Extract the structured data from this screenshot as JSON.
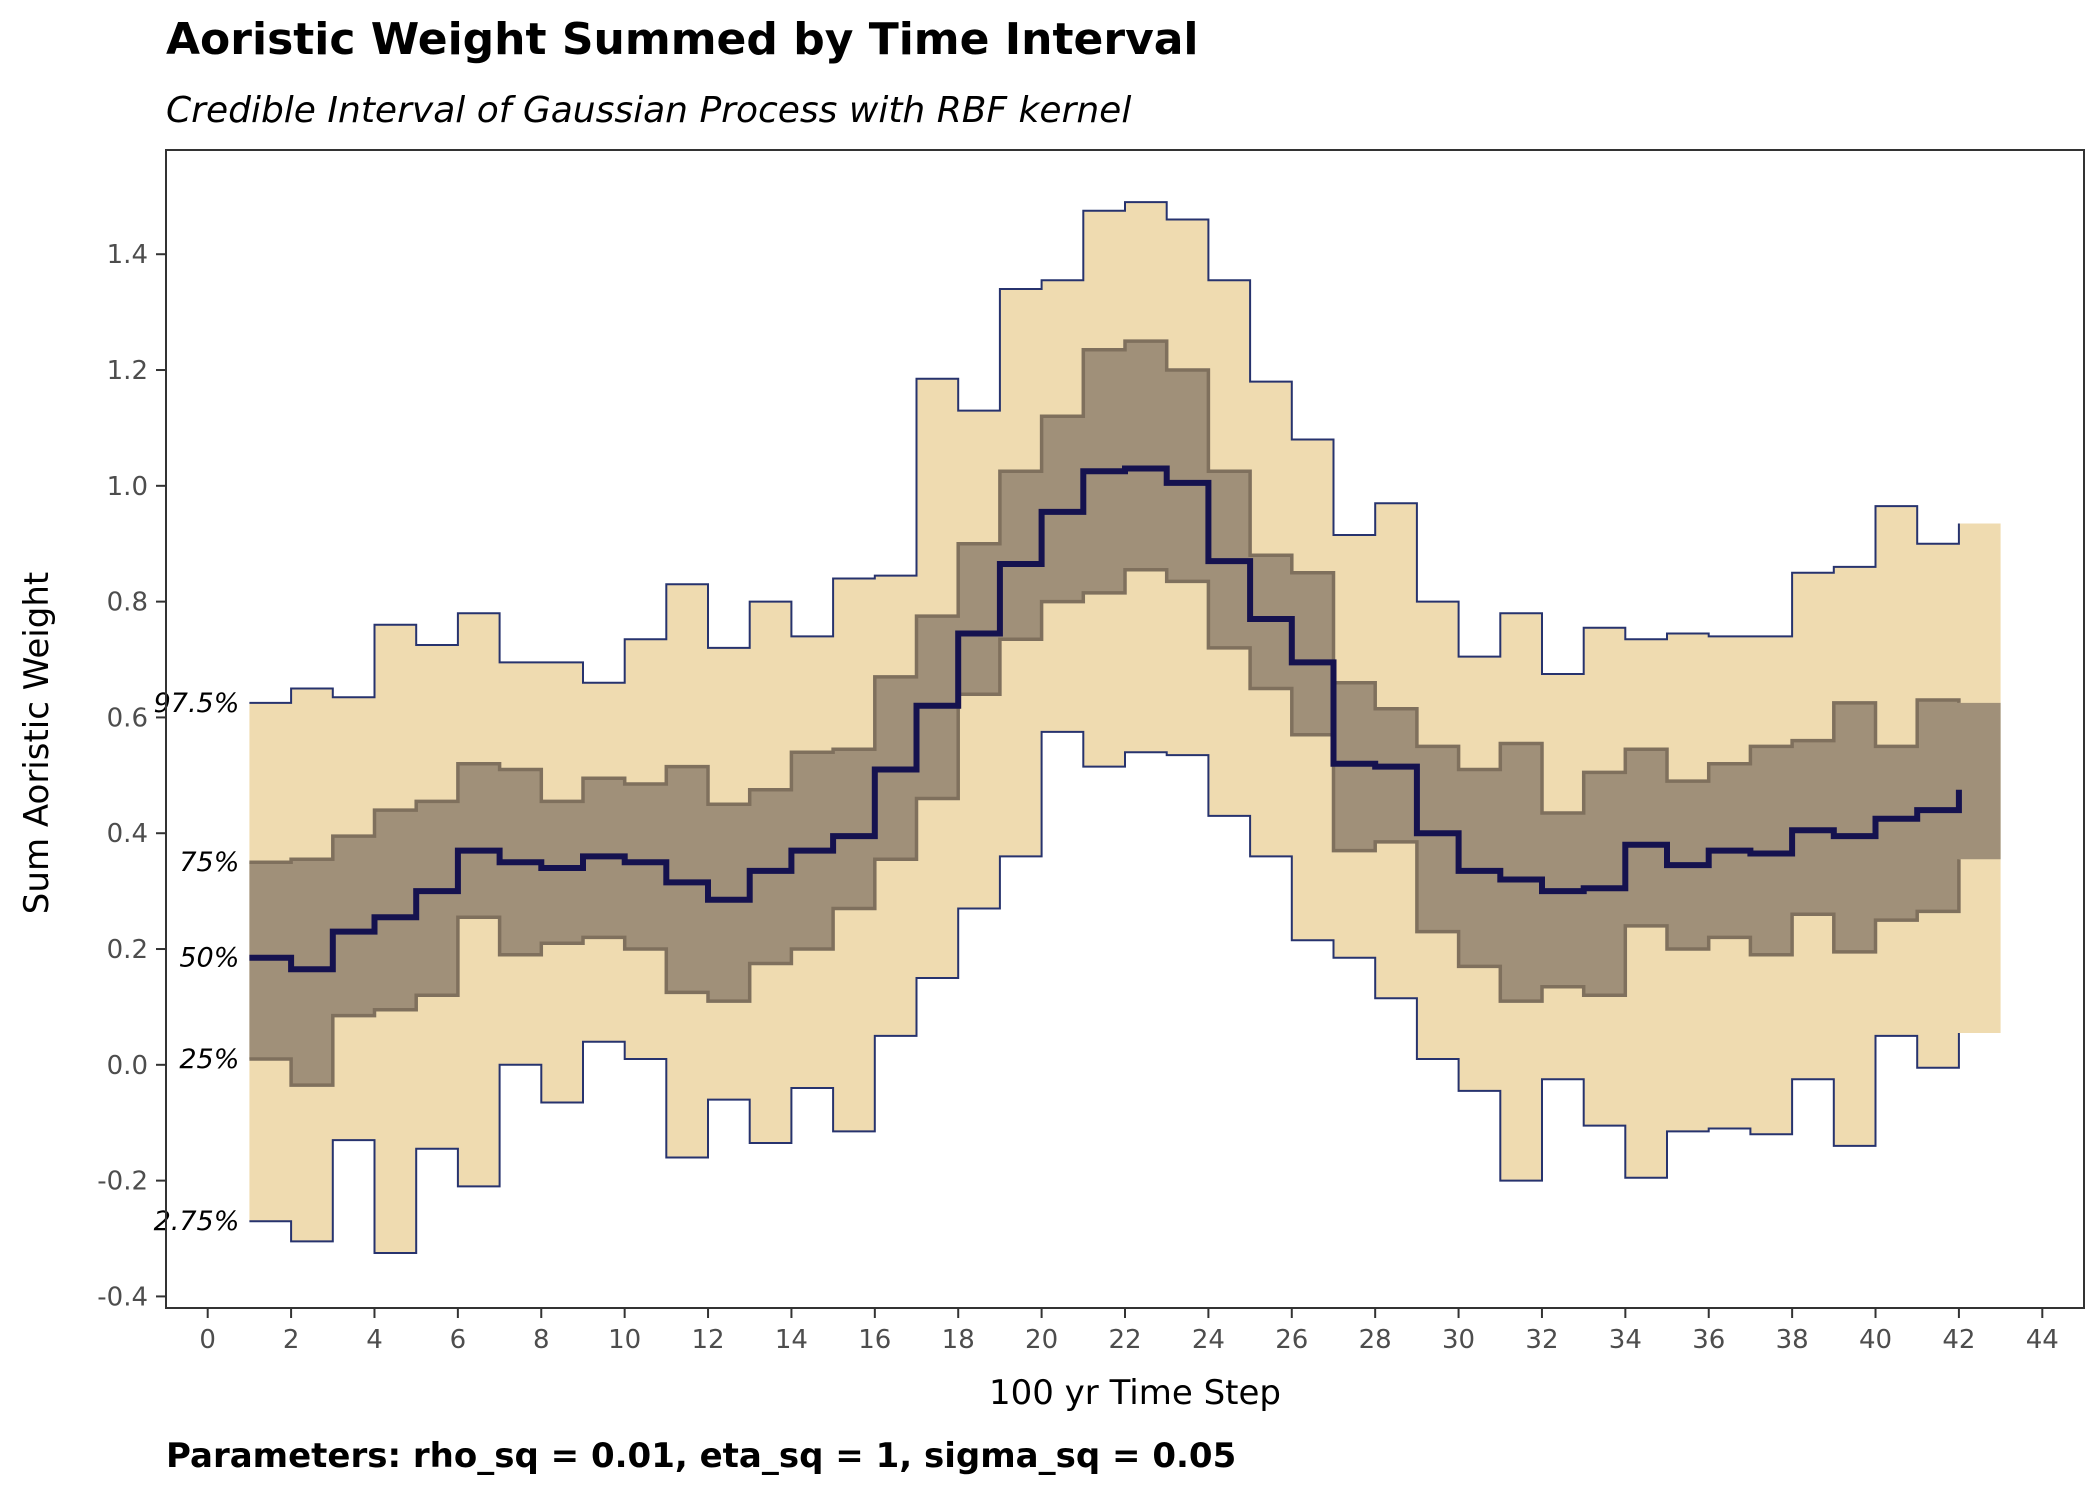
{
  "title": "Aoristic Weight Summed by Time Interval",
  "subtitle": "Credible Interval of Gaussian Process with RBF kernel",
  "caption": "Parameters: rho_sq = 0.01, eta_sq = 1, sigma_sq = 0.05",
  "colors": {
    "outer_band": "#efdbb0",
    "inner_band": "#a09079",
    "inner_edge": "#7f705d",
    "outer_edge": "#27336e",
    "median": "#15124f",
    "axis": "#333333"
  },
  "chart_data": {
    "type": "line",
    "step": true,
    "title": "Aoristic Weight Summed by Time Interval",
    "subtitle": "Credible Interval of Gaussian Process with RBF kernel",
    "xlabel": "100 yr Time Step",
    "ylabel": "Sum Aoristic Weight",
    "xlim": [
      -1,
      45
    ],
    "ylim": [
      -0.42,
      1.58
    ],
    "xticks": [
      0,
      2,
      4,
      6,
      8,
      10,
      12,
      14,
      16,
      18,
      20,
      22,
      24,
      26,
      28,
      30,
      32,
      34,
      36,
      38,
      40,
      42,
      44
    ],
    "yticks": [
      -0.4,
      -0.2,
      0.0,
      0.2,
      0.4,
      0.6,
      0.8,
      1.0,
      1.2,
      1.4
    ],
    "ytick_labels": [
      "-0.4",
      "-0.2",
      "0.0",
      "0.2",
      "0.4",
      "0.6",
      "0.8",
      "1.0",
      "1.2",
      "1.4"
    ],
    "grid": false,
    "x": [
      1,
      2,
      3,
      4,
      5,
      6,
      7,
      8,
      9,
      10,
      11,
      12,
      13,
      14,
      15,
      16,
      17,
      18,
      19,
      20,
      21,
      22,
      23,
      24,
      25,
      26,
      27,
      28,
      29,
      30,
      31,
      32,
      33,
      34,
      35,
      36,
      37,
      38,
      39,
      40,
      41,
      42
    ],
    "series": [
      {
        "name": "97.5%",
        "values": [
          0.625,
          0.65,
          0.635,
          0.76,
          0.725,
          0.78,
          0.695,
          0.695,
          0.66,
          0.735,
          0.83,
          0.72,
          0.8,
          0.74,
          0.84,
          0.845,
          1.185,
          1.13,
          1.34,
          1.355,
          1.475,
          1.49,
          1.46,
          1.355,
          1.18,
          1.08,
          0.915,
          0.97,
          0.8,
          0.705,
          0.78,
          0.675,
          0.755,
          0.735,
          0.745,
          0.74,
          0.74,
          0.85,
          0.86,
          0.965,
          0.9,
          0.935
        ]
      },
      {
        "name": "75%",
        "values": [
          0.35,
          0.355,
          0.395,
          0.44,
          0.455,
          0.52,
          0.51,
          0.455,
          0.495,
          0.485,
          0.515,
          0.45,
          0.475,
          0.54,
          0.545,
          0.67,
          0.775,
          0.9,
          1.025,
          1.12,
          1.235,
          1.25,
          1.2,
          1.025,
          0.88,
          0.85,
          0.66,
          0.615,
          0.55,
          0.51,
          0.555,
          0.435,
          0.505,
          0.545,
          0.49,
          0.52,
          0.55,
          0.56,
          0.625,
          0.55,
          0.63,
          0.625
        ]
      },
      {
        "name": "50%",
        "values": [
          0.185,
          0.165,
          0.23,
          0.255,
          0.3,
          0.37,
          0.35,
          0.34,
          0.36,
          0.35,
          0.315,
          0.285,
          0.335,
          0.37,
          0.395,
          0.51,
          0.62,
          0.745,
          0.865,
          0.955,
          1.025,
          1.03,
          1.005,
          0.87,
          0.77,
          0.695,
          0.52,
          0.515,
          0.4,
          0.335,
          0.32,
          0.3,
          0.305,
          0.38,
          0.345,
          0.37,
          0.365,
          0.405,
          0.395,
          0.425,
          0.44,
          0.475
        ]
      },
      {
        "name": "25%",
        "values": [
          0.01,
          -0.035,
          0.085,
          0.095,
          0.12,
          0.255,
          0.19,
          0.21,
          0.22,
          0.2,
          0.125,
          0.11,
          0.175,
          0.2,
          0.27,
          0.355,
          0.46,
          0.64,
          0.735,
          0.8,
          0.815,
          0.855,
          0.835,
          0.72,
          0.65,
          0.57,
          0.37,
          0.385,
          0.23,
          0.17,
          0.11,
          0.135,
          0.12,
          0.24,
          0.2,
          0.22,
          0.19,
          0.26,
          0.195,
          0.25,
          0.265,
          0.355
        ]
      },
      {
        "name": "2.75%",
        "values": [
          -0.27,
          -0.305,
          -0.13,
          -0.325,
          -0.145,
          -0.21,
          0.0,
          -0.065,
          0.04,
          0.01,
          -0.16,
          -0.06,
          -0.135,
          -0.04,
          -0.115,
          0.05,
          0.15,
          0.27,
          0.36,
          0.575,
          0.515,
          0.54,
          0.535,
          0.43,
          0.36,
          0.215,
          0.185,
          0.115,
          0.01,
          -0.045,
          -0.2,
          -0.025,
          -0.105,
          -0.195,
          -0.115,
          -0.11,
          -0.12,
          -0.025,
          -0.14,
          0.05,
          -0.005,
          0.055
        ]
      }
    ],
    "band_labels": [
      "97.5%",
      "75%",
      "50%",
      "25%",
      "2.75%"
    ]
  }
}
